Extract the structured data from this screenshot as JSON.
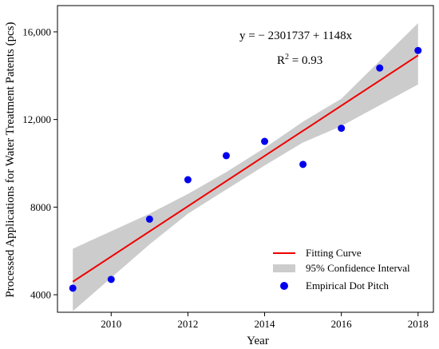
{
  "chart_data": {
    "type": "scatter",
    "xlabel": "Year",
    "ylabel": "Processed Applications for Water Treatment Patents (pcs)",
    "xlim": [
      2008.6,
      2018.4
    ],
    "ylim": [
      3200,
      17200
    ],
    "x_ticks": [
      "2010",
      "2012",
      "2014",
      "2016",
      "2018"
    ],
    "x_tick_values": [
      2010,
      2012,
      2014,
      2016,
      2018
    ],
    "y_ticks": [
      "4000",
      "8000",
      "12,000",
      "16,000"
    ],
    "y_tick_values": [
      4000,
      8000,
      12000,
      16000
    ],
    "grid": false,
    "legend_position": "bottom-right",
    "series": [
      {
        "name": "Empirical Dot Pitch",
        "kind": "scatter",
        "color": "#0000ee",
        "x": [
          2009,
          2010,
          2011,
          2012,
          2013,
          2014,
          2015,
          2016,
          2017,
          2018
        ],
        "y": [
          4300,
          4700,
          7450,
          9250,
          10350,
          11000,
          9950,
          11600,
          14350,
          15150
        ]
      },
      {
        "name": "Fitting Curve",
        "kind": "line",
        "color": "#ee0000",
        "intercept": -2301737,
        "slope": 1148
      },
      {
        "name": "95% Confidence Interval",
        "kind": "band",
        "color": "#cccccc",
        "x": [
          2009,
          2011,
          2012,
          2013,
          2014,
          2015,
          2016,
          2018
        ],
        "lower": [
          3250,
          6300,
          7700,
          8800,
          9900,
          10950,
          11700,
          13600
        ],
        "upper": [
          6100,
          7700,
          8600,
          9600,
          10700,
          11900,
          12950,
          16400
        ]
      }
    ],
    "annotations": {
      "equation": "y = − 2301737 + 1148x",
      "r2_base": "R",
      "r2_sup": "2",
      "r2_value": " = 0.93"
    }
  }
}
